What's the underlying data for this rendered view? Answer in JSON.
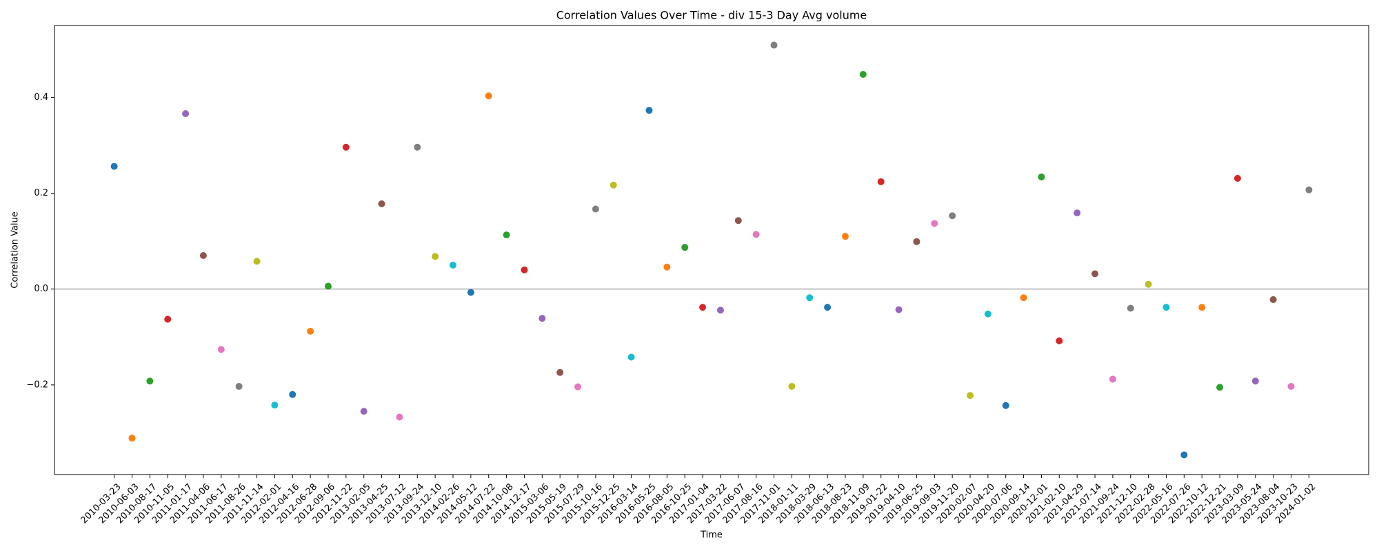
{
  "chart_data": {
    "type": "scatter",
    "title": "Correlation Values Over Time - div 15-3 Day Avg volume",
    "x_label": "Time",
    "y_label": "Correlation Value",
    "categories": [
      "2010-03-23",
      "2010-06-03",
      "2010-08-17",
      "2010-11-05",
      "2011-01-17",
      "2011-04-06",
      "2011-06-17",
      "2011-08-26",
      "2011-11-14",
      "2012-02-01",
      "2012-04-16",
      "2012-06-28",
      "2012-09-06",
      "2012-11-22",
      "2013-02-05",
      "2013-04-25",
      "2013-07-12",
      "2013-09-24",
      "2013-12-10",
      "2014-02-26",
      "2014-05-12",
      "2014-07-22",
      "2014-10-08",
      "2014-12-17",
      "2015-03-06",
      "2015-05-19",
      "2015-07-29",
      "2015-10-16",
      "2015-12-25",
      "2016-03-14",
      "2016-05-25",
      "2016-08-05",
      "2016-10-25",
      "2017-01-04",
      "2017-03-22",
      "2017-06-07",
      "2017-08-16",
      "2017-11-01",
      "2018-01-11",
      "2018-03-29",
      "2018-06-13",
      "2018-08-23",
      "2018-11-09",
      "2019-01-22",
      "2019-04-10",
      "2019-06-25",
      "2019-09-03",
      "2019-11-20",
      "2020-02-07",
      "2020-04-20",
      "2020-07-06",
      "2020-09-14",
      "2020-12-01",
      "2021-02-10",
      "2021-04-29",
      "2021-07-14",
      "2021-09-24",
      "2021-12-10",
      "2022-02-28",
      "2022-05-16",
      "2022-07-26",
      "2022-10-12",
      "2022-12-21",
      "2023-03-09",
      "2023-05-24",
      "2023-08-04",
      "2023-10-23",
      "2024-01-02"
    ],
    "values": [
      0.256,
      -0.311,
      -0.192,
      -0.063,
      0.366,
      0.07,
      -0.126,
      -0.203,
      0.058,
      -0.242,
      -0.22,
      -0.088,
      0.006,
      0.296,
      -0.255,
      0.178,
      -0.267,
      0.296,
      0.068,
      0.05,
      -0.007,
      0.403,
      0.113,
      0.04,
      -0.061,
      -0.174,
      -0.204,
      0.167,
      0.217,
      -0.142,
      0.373,
      0.046,
      0.087,
      -0.038,
      -0.044,
      0.143,
      0.114,
      0.509,
      -0.203,
      -0.018,
      -0.038,
      0.11,
      0.448,
      0.224,
      -0.043,
      0.099,
      0.137,
      0.153,
      -0.222,
      -0.052,
      -0.243,
      -0.018,
      0.234,
      -0.108,
      0.159,
      0.032,
      -0.188,
      -0.04,
      0.01,
      -0.038,
      -0.346,
      -0.038,
      -0.205,
      0.231,
      -0.192,
      -0.022,
      -0.203,
      0.207
    ],
    "colors": [
      "#1f77b4",
      "#ff7f0e",
      "#2ca02c",
      "#d62728",
      "#9467bd",
      "#8c564b",
      "#e377c2",
      "#7f7f7f",
      "#bcbd22",
      "#17becf"
    ],
    "ylim": [
      -0.387,
      0.55
    ],
    "yticks": [
      {
        "value": -0.2,
        "label": "−0.2"
      },
      {
        "value": 0,
        "label": "0.0"
      },
      0.2,
      0.4
    ],
    "reference_line": 0
  }
}
